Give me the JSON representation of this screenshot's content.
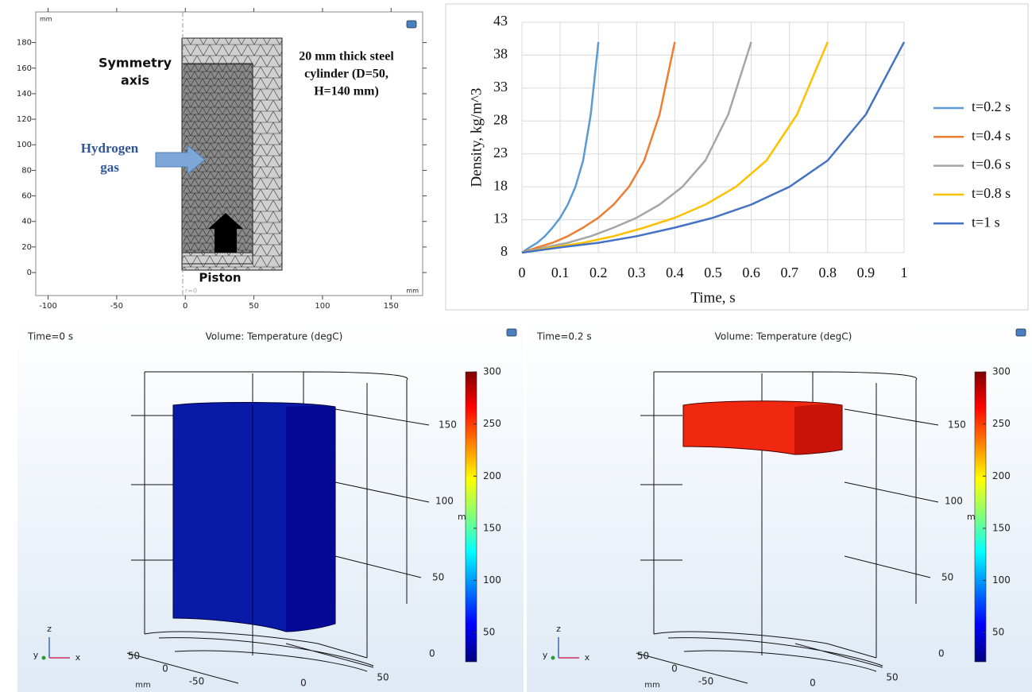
{
  "geometry_view": {
    "x_unit": "mm",
    "y_unit": "mm",
    "xlim": [
      -109,
      173
    ],
    "ylim": [
      -18,
      204
    ],
    "xticks": [
      -100,
      -50,
      0,
      50,
      100,
      150
    ],
    "yticks": [
      0,
      20,
      40,
      60,
      80,
      100,
      120,
      140,
      160,
      180
    ],
    "axis_label": "r=0",
    "symmetry_label": [
      "Symmetry",
      "axis"
    ],
    "gas_label": [
      "Hydrogen",
      "gas"
    ],
    "cylinder_label": [
      "20 mm thick steel",
      "cylinder (D=50,",
      "H=140 mm)"
    ],
    "piston_label": "Piston"
  },
  "chart_data": {
    "type": "line",
    "xlabel": "Time, s",
    "ylabel": "Density, kg/m^3",
    "xlim": [
      0,
      1
    ],
    "ylim": [
      8,
      43
    ],
    "xticks": [
      0,
      0.1,
      0.2,
      0.3,
      0.4,
      0.5,
      0.6,
      0.7,
      0.8,
      0.9,
      1
    ],
    "yticks": [
      8,
      13,
      18,
      23,
      28,
      33,
      38,
      43
    ],
    "grid": true,
    "legend": "right",
    "series": [
      {
        "name": "t=0.2 s",
        "color": "#5b9bd5",
        "x": [
          0,
          0.02,
          0.04,
          0.06,
          0.08,
          0.1,
          0.12,
          0.14,
          0.16,
          0.18,
          0.2
        ],
        "values": [
          8,
          8.8,
          9.5,
          10.5,
          11.8,
          13.3,
          15.3,
          18,
          22,
          29,
          40
        ]
      },
      {
        "name": "t=0.4 s",
        "color": "#ed7d31",
        "x": [
          0,
          0.04,
          0.08,
          0.12,
          0.16,
          0.2,
          0.24,
          0.28,
          0.32,
          0.36,
          0.4
        ],
        "values": [
          8,
          8.8,
          9.5,
          10.5,
          11.8,
          13.3,
          15.3,
          18,
          22,
          29,
          40
        ]
      },
      {
        "name": "t=0.6 s",
        "color": "#a5a5a5",
        "x": [
          0,
          0.06,
          0.12,
          0.18,
          0.24,
          0.3,
          0.36,
          0.42,
          0.48,
          0.54,
          0.6
        ],
        "values": [
          8,
          8.8,
          9.5,
          10.5,
          11.8,
          13.3,
          15.3,
          18,
          22,
          29,
          40
        ]
      },
      {
        "name": "t=0.8 s",
        "color": "#ffc000",
        "x": [
          0,
          0.08,
          0.16,
          0.24,
          0.32,
          0.4,
          0.48,
          0.56,
          0.64,
          0.72,
          0.8
        ],
        "values": [
          8,
          8.8,
          9.5,
          10.5,
          11.8,
          13.3,
          15.3,
          18,
          22,
          29,
          40
        ]
      },
      {
        "name": "t=1 s",
        "color": "#4472c4",
        "x": [
          0,
          0.1,
          0.2,
          0.3,
          0.4,
          0.5,
          0.6,
          0.7,
          0.8,
          0.9,
          1
        ],
        "values": [
          8,
          8.8,
          9.5,
          10.5,
          11.8,
          13.3,
          15.3,
          18,
          22,
          29,
          40
        ]
      }
    ]
  },
  "temperature_views": [
    {
      "time": "Time=0 s",
      "title": "Volume: Temperature (degC)",
      "body_color": "#0a1aa8",
      "clim": [
        22,
        300
      ],
      "colorbar_ticks": [
        50,
        100,
        150,
        200,
        250,
        300
      ],
      "z_ticks": [
        150,
        100,
        50,
        0
      ],
      "y_ticks": [
        50,
        0,
        -50
      ],
      "x_ticks": [
        0,
        50
      ],
      "unit": "mm",
      "cut_unit": "m",
      "triad": [
        "z",
        "y",
        "x"
      ]
    },
    {
      "time": "Time=0.2 s",
      "title": "Volume: Temperature (degC)",
      "body_color": "#f02810",
      "clim": [
        22,
        300
      ],
      "colorbar_ticks": [
        50,
        100,
        150,
        200,
        250,
        300
      ],
      "z_ticks": [
        150,
        100,
        50,
        0
      ],
      "y_ticks": [
        50,
        0,
        -50
      ],
      "x_ticks": [
        0,
        50
      ],
      "unit": "mm",
      "cut_unit": "m",
      "triad": [
        "z",
        "y",
        "x"
      ]
    }
  ]
}
